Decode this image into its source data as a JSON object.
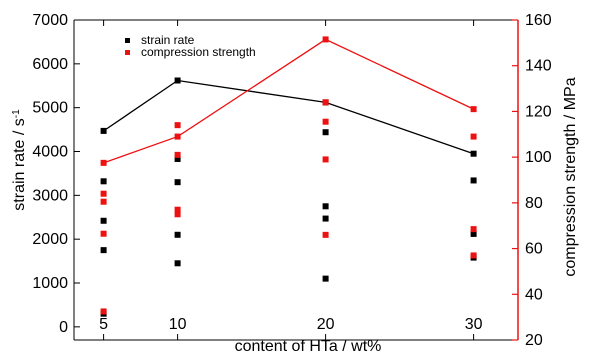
{
  "chart_data": {
    "type": "scatter",
    "xlabel": "content of HTa / wt%",
    "ylabel_left": "strain rate / s",
    "ylabel_left_superscript": "-1",
    "ylabel_right": "compression strength / MPa",
    "x_ticks": [
      5,
      10,
      20,
      30
    ],
    "y_left_ticks": [
      0,
      1000,
      2000,
      3000,
      4000,
      5000,
      6000,
      7000
    ],
    "y_right_ticks": [
      20,
      40,
      60,
      80,
      100,
      120,
      140,
      160
    ],
    "ylim_left": [
      -300,
      7000
    ],
    "ylim_right": [
      20,
      160
    ],
    "xlim": [
      3,
      33
    ],
    "legend": {
      "position": "top-left",
      "entries": [
        {
          "label": "strain rate",
          "color": "#000000"
        },
        {
          "label": "compression strength",
          "color": "#ee1111"
        }
      ]
    },
    "series": [
      {
        "name": "strain rate",
        "axis": "left",
        "color": "#000000",
        "points": [
          {
            "x": 5,
            "y": 4470
          },
          {
            "x": 5,
            "y": 3320
          },
          {
            "x": 5,
            "y": 2420
          },
          {
            "x": 5,
            "y": 1750
          },
          {
            "x": 5,
            "y": 300
          },
          {
            "x": 10,
            "y": 5620
          },
          {
            "x": 10,
            "y": 3830
          },
          {
            "x": 10,
            "y": 3300
          },
          {
            "x": 10,
            "y": 2100
          },
          {
            "x": 10,
            "y": 1450
          },
          {
            "x": 20,
            "y": 5120
          },
          {
            "x": 20,
            "y": 4440
          },
          {
            "x": 20,
            "y": 2750
          },
          {
            "x": 20,
            "y": 2470
          },
          {
            "x": 20,
            "y": 1100
          },
          {
            "x": 30,
            "y": 3950
          },
          {
            "x": 30,
            "y": 3340
          },
          {
            "x": 30,
            "y": 2120
          },
          {
            "x": 30,
            "y": 1580
          }
        ],
        "mean_line": [
          {
            "x": 5,
            "y": 4470
          },
          {
            "x": 10,
            "y": 5620
          },
          {
            "x": 20,
            "y": 5120
          },
          {
            "x": 30,
            "y": 3950
          }
        ]
      },
      {
        "name": "compression strength",
        "axis": "right",
        "color": "#ee1111",
        "points": [
          {
            "x": 5,
            "y": 97.5
          },
          {
            "x": 5,
            "y": 84
          },
          {
            "x": 5,
            "y": 80.5
          },
          {
            "x": 5,
            "y": 66.5
          },
          {
            "x": 5,
            "y": 32.5
          },
          {
            "x": 10,
            "y": 114
          },
          {
            "x": 10,
            "y": 109
          },
          {
            "x": 10,
            "y": 101
          },
          {
            "x": 10,
            "y": 77
          },
          {
            "x": 10,
            "y": 75
          },
          {
            "x": 20,
            "y": 151.5
          },
          {
            "x": 20,
            "y": 124
          },
          {
            "x": 20,
            "y": 115.5
          },
          {
            "x": 20,
            "y": 99
          },
          {
            "x": 20,
            "y": 66
          },
          {
            "x": 30,
            "y": 121
          },
          {
            "x": 30,
            "y": 109
          },
          {
            "x": 30,
            "y": 68.5
          },
          {
            "x": 30,
            "y": 57
          }
        ],
        "mean_line": [
          {
            "x": 5,
            "y": 97.5
          },
          {
            "x": 10,
            "y": 109
          },
          {
            "x": 20,
            "y": 151.5
          },
          {
            "x": 30,
            "y": 121
          }
        ]
      }
    ]
  }
}
